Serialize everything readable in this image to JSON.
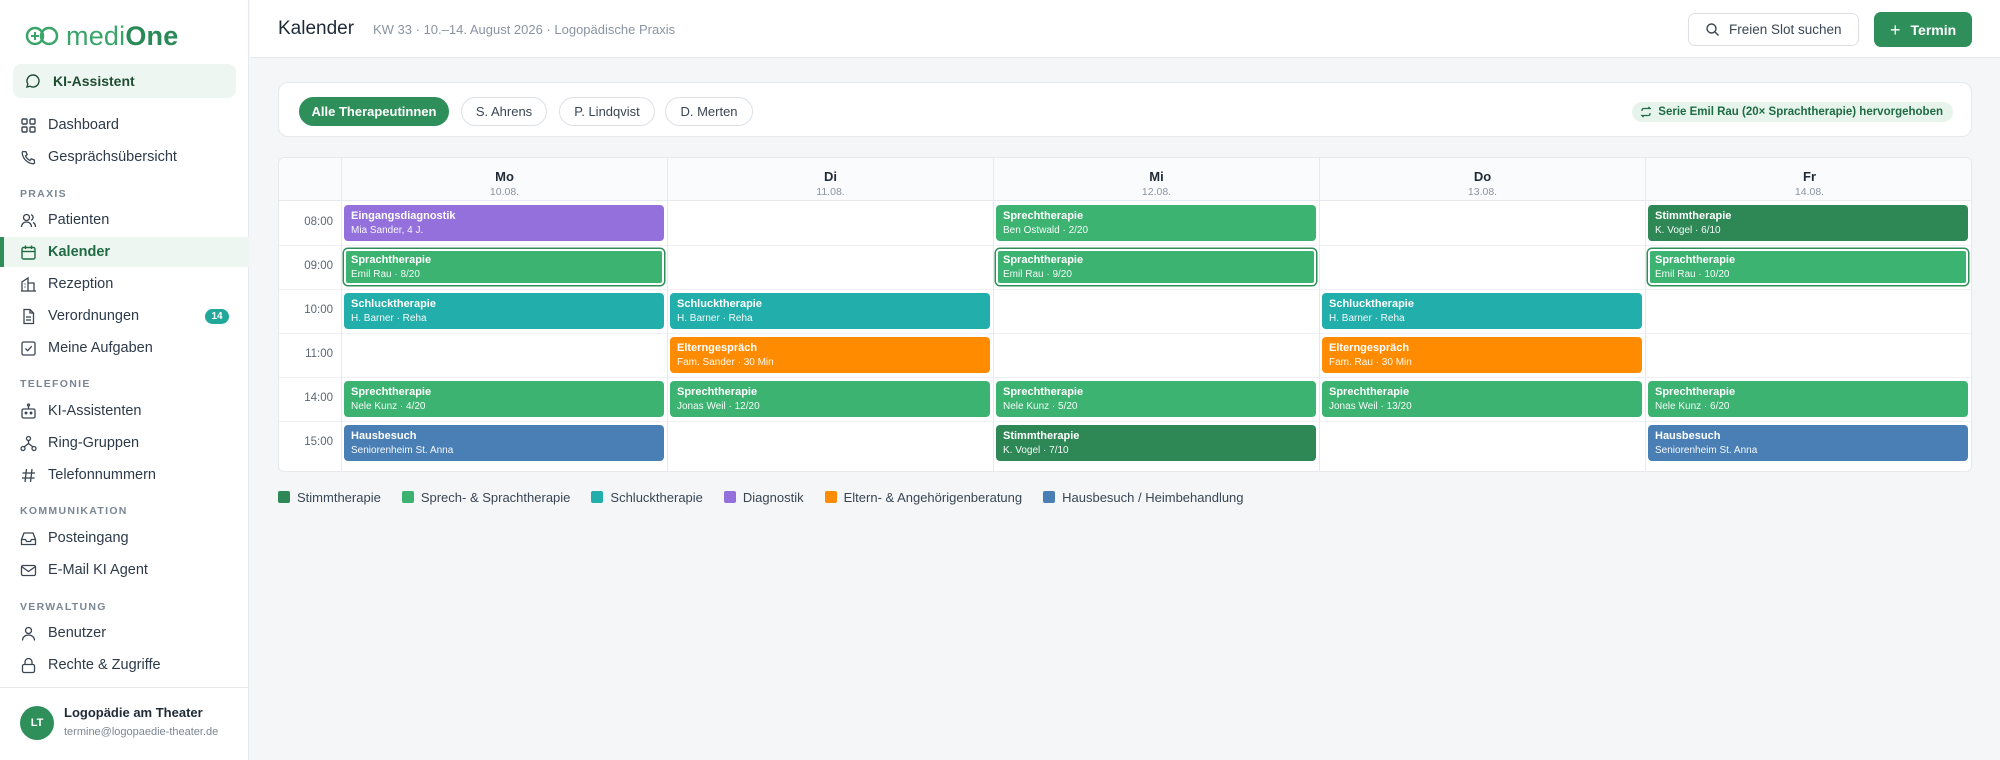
{
  "app": {
    "logo_light": "medi",
    "logo_bold": "One"
  },
  "sidebar": {
    "ai_button": "KI-Assistent",
    "top_items": [
      {
        "label": "Dashboard",
        "icon": "dashboard-icon"
      },
      {
        "label": "Gesprächsübersicht",
        "icon": "phone-icon"
      }
    ],
    "sections": {
      "praxis": "PRAXIS",
      "telefonie": "TELEFONIE",
      "kommunikation": "KOMMUNIKATION",
      "verwaltung": "VERWALTUNG"
    },
    "praxis_items": [
      {
        "label": "Patienten"
      },
      {
        "label": "Kalender"
      },
      {
        "label": "Rezeption"
      },
      {
        "label": "Verordnungen",
        "badge": "14"
      },
      {
        "label": "Meine Aufgaben"
      }
    ],
    "telefonie_items": [
      {
        "label": "KI-Assistenten"
      },
      {
        "label": "Ring-Gruppen"
      },
      {
        "label": "Telefonnummern"
      }
    ],
    "kommunikation_items": [
      {
        "label": "Posteingang"
      },
      {
        "label": "E-Mail KI Agent"
      }
    ],
    "verwaltung_items": [
      {
        "label": "Benutzer"
      },
      {
        "label": "Rechte & Zugriffe"
      }
    ],
    "user": {
      "initials": "LT",
      "name": "Logopädie am Theater",
      "email": "termine@logopaedie-theater.de"
    }
  },
  "header": {
    "title": "Kalender",
    "subtitle": "KW 33 · 10.–14. August 2026 · Logopädische Praxis",
    "slot_button": "Freien Slot suchen",
    "add_button": "Termin"
  },
  "filters": {
    "pills": [
      "Alle Therapeutinnen",
      "S. Ahrens",
      "P. Lindqvist",
      "D. Merten"
    ],
    "series_badge": "Serie Emil Rau (20× Sprachtherapie) hervorgehoben"
  },
  "calendar": {
    "days": [
      {
        "name": "Mo",
        "date": "10.08."
      },
      {
        "name": "Di",
        "date": "11.08."
      },
      {
        "name": "Mi",
        "date": "12.08."
      },
      {
        "name": "Do",
        "date": "13.08."
      },
      {
        "name": "Fr",
        "date": "14.08."
      }
    ],
    "times": [
      "08:00",
      "09:00",
      "10:00",
      "11:00",
      "14:00",
      "15:00"
    ],
    "events": [
      {
        "day": 0,
        "slot": 0,
        "title": "Eingangsdiagnostik",
        "sub": "Mia Sander, 4 J.",
        "type": "diag"
      },
      {
        "day": 2,
        "slot": 0,
        "title": "Sprechtherapie",
        "sub": "Ben Ostwald · 2/20",
        "type": "sprach"
      },
      {
        "day": 4,
        "slot": 0,
        "title": "Stimmtherapie",
        "sub": "K. Vogel · 6/10",
        "type": "stimm"
      },
      {
        "day": 0,
        "slot": 1,
        "title": "Sprachtherapie",
        "sub": "Emil Rau · 8/20",
        "type": "sprach",
        "highlight": true
      },
      {
        "day": 2,
        "slot": 1,
        "title": "Sprachtherapie",
        "sub": "Emil Rau · 9/20",
        "type": "sprach",
        "highlight": true
      },
      {
        "day": 4,
        "slot": 1,
        "title": "Sprachtherapie",
        "sub": "Emil Rau · 10/20",
        "type": "sprach",
        "highlight": true
      },
      {
        "day": 0,
        "slot": 2,
        "title": "Schlucktherapie",
        "sub": "H. Barner · Reha",
        "type": "schluck"
      },
      {
        "day": 1,
        "slot": 2,
        "title": "Schlucktherapie",
        "sub": "H. Barner · Reha",
        "type": "schluck"
      },
      {
        "day": 3,
        "slot": 2,
        "title": "Schlucktherapie",
        "sub": "H. Barner · Reha",
        "type": "schluck"
      },
      {
        "day": 1,
        "slot": 3,
        "title": "Elterngespräch",
        "sub": "Fam. Sander · 30 Min",
        "type": "eltern"
      },
      {
        "day": 3,
        "slot": 3,
        "title": "Elterngespräch",
        "sub": "Fam. Rau · 30 Min",
        "type": "eltern"
      },
      {
        "day": 0,
        "slot": 4,
        "title": "Sprechtherapie",
        "sub": "Nele Kunz · 4/20",
        "type": "sprach"
      },
      {
        "day": 1,
        "slot": 4,
        "title": "Sprechtherapie",
        "sub": "Jonas Weil · 12/20",
        "type": "sprach"
      },
      {
        "day": 2,
        "slot": 4,
        "title": "Sprechtherapie",
        "sub": "Nele Kunz · 5/20",
        "type": "sprach"
      },
      {
        "day": 3,
        "slot": 4,
        "title": "Sprechtherapie",
        "sub": "Jonas Weil · 13/20",
        "type": "sprach"
      },
      {
        "day": 4,
        "slot": 4,
        "title": "Sprechtherapie",
        "sub": "Nele Kunz · 6/20",
        "type": "sprach"
      },
      {
        "day": 0,
        "slot": 5,
        "title": "Hausbesuch",
        "sub": "Seniorenheim St. Anna",
        "type": "haus"
      },
      {
        "day": 2,
        "slot": 5,
        "title": "Stimmtherapie",
        "sub": "K. Vogel · 7/10",
        "type": "stimm"
      },
      {
        "day": 4,
        "slot": 5,
        "title": "Hausbesuch",
        "sub": "Seniorenheim St. Anna",
        "type": "haus"
      }
    ]
  },
  "legend": [
    {
      "label": "Stimmtherapie",
      "color": "#2e8856"
    },
    {
      "label": "Sprech- & Sprachtherapie",
      "color": "#3cb371"
    },
    {
      "label": "Schlucktherapie",
      "color": "#22aeaa"
    },
    {
      "label": "Diagnostik",
      "color": "#9370db"
    },
    {
      "label": "Eltern- & Angehörigenberatung",
      "color": "#ff8c00"
    },
    {
      "label": "Hausbesuch / Heimbehandlung",
      "color": "#4a7fb5"
    }
  ]
}
